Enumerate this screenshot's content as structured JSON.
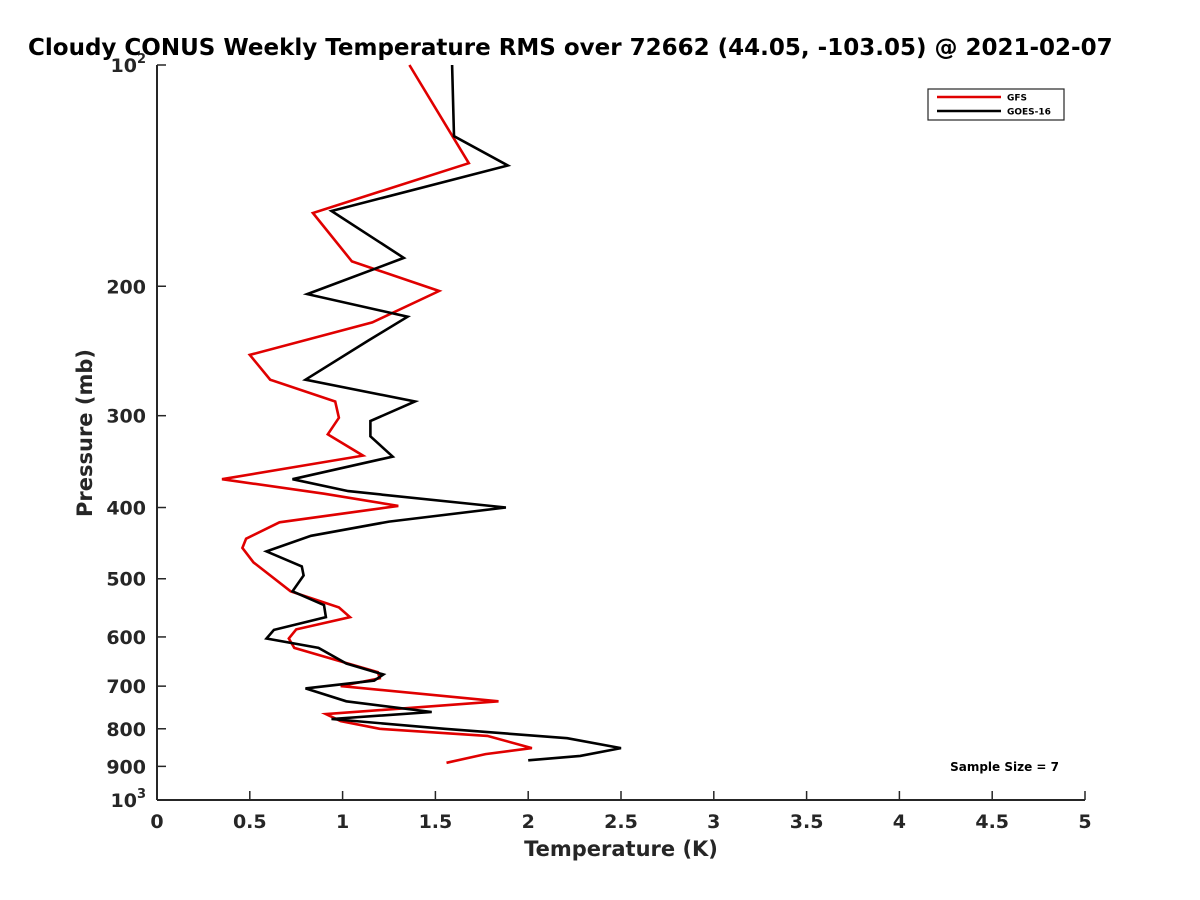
{
  "chart_data": {
    "type": "line",
    "title": "Cloudy CONUS Weekly Temperature RMS over 72662 (44.05, -103.05) @ 2021-02-07",
    "xlabel": "Temperature (K)",
    "ylabel": "Pressure (mb)",
    "xlim": [
      0,
      5
    ],
    "ylim": [
      100,
      1000
    ],
    "y_scale": "log",
    "y_reversed": true,
    "grid": false,
    "legend_position": "top-right",
    "x_ticks": [
      "0",
      "0.5",
      "1",
      "1.5",
      "2",
      "2.5",
      "3",
      "3.5",
      "4",
      "4.5",
      "5"
    ],
    "y_ticks": [
      {
        "value": 100,
        "base": "10",
        "exp": "2"
      },
      {
        "value": 200,
        "label": "200"
      },
      {
        "value": 300,
        "label": "300"
      },
      {
        "value": 400,
        "label": "400"
      },
      {
        "value": 500,
        "label": "500"
      },
      {
        "value": 600,
        "label": "600"
      },
      {
        "value": 700,
        "label": "700"
      },
      {
        "value": 800,
        "label": "800"
      },
      {
        "value": 900,
        "label": "900"
      },
      {
        "value": 1000,
        "base": "10",
        "exp": "3"
      }
    ],
    "series": [
      {
        "name": "GFS",
        "color": "#e00000",
        "points": [
          [
            1.36,
            100
          ],
          [
            1.68,
            136
          ],
          [
            0.84,
            159
          ],
          [
            1.05,
            185
          ],
          [
            1.52,
            203
          ],
          [
            1.16,
            224
          ],
          [
            0.5,
            248
          ],
          [
            0.61,
            268
          ],
          [
            0.96,
            287
          ],
          [
            0.98,
            302
          ],
          [
            0.92,
            318
          ],
          [
            1.11,
            340
          ],
          [
            0.35,
            366
          ],
          [
            0.9,
            383
          ],
          [
            1.3,
            398
          ],
          [
            0.66,
            419
          ],
          [
            0.48,
            441
          ],
          [
            0.46,
            454
          ],
          [
            0.52,
            475
          ],
          [
            0.72,
            520
          ],
          [
            0.98,
            547
          ],
          [
            1.04,
            564
          ],
          [
            0.75,
            586
          ],
          [
            0.71,
            603
          ],
          [
            0.74,
            621
          ],
          [
            1.01,
            650
          ],
          [
            1.19,
            670
          ],
          [
            1.2,
            683
          ],
          [
            0.99,
            700
          ],
          [
            1.84,
            734
          ],
          [
            0.91,
            764
          ],
          [
            0.99,
            781
          ],
          [
            1.2,
            800
          ],
          [
            1.78,
            818
          ],
          [
            2.02,
            850
          ],
          [
            1.77,
            866
          ],
          [
            1.56,
            890
          ]
        ]
      },
      {
        "name": "GOES-16",
        "color": "#000000",
        "points": [
          [
            1.59,
            100
          ],
          [
            1.6,
            125
          ],
          [
            1.89,
            137
          ],
          [
            0.94,
            158
          ],
          [
            1.33,
            183
          ],
          [
            0.81,
            205
          ],
          [
            1.35,
            220
          ],
          [
            1.14,
            237
          ],
          [
            0.8,
            268
          ],
          [
            1.39,
            287
          ],
          [
            1.15,
            305
          ],
          [
            1.15,
            320
          ],
          [
            1.27,
            341
          ],
          [
            0.73,
            366
          ],
          [
            1.03,
            380
          ],
          [
            1.88,
            400
          ],
          [
            1.25,
            418
          ],
          [
            0.83,
            437
          ],
          [
            0.59,
            459
          ],
          [
            0.78,
            481
          ],
          [
            0.79,
            495
          ],
          [
            0.73,
            520
          ],
          [
            0.9,
            543
          ],
          [
            0.91,
            564
          ],
          [
            0.63,
            587
          ],
          [
            0.59,
            603
          ],
          [
            0.87,
            621
          ],
          [
            1.02,
            652
          ],
          [
            1.22,
            675
          ],
          [
            1.17,
            688
          ],
          [
            0.8,
            705
          ],
          [
            1.02,
            734
          ],
          [
            1.48,
            759
          ],
          [
            0.94,
            776
          ],
          [
            1.55,
            800
          ],
          [
            2.21,
            824
          ],
          [
            2.5,
            850
          ],
          [
            2.28,
            871
          ],
          [
            2.0,
            883
          ]
        ]
      }
    ],
    "annotations": [
      {
        "text": "Sample Size = 7",
        "position": "bottom-right"
      }
    ]
  }
}
